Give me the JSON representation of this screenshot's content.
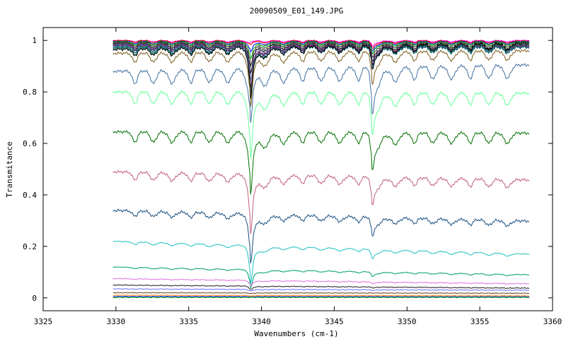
{
  "chart_data": {
    "type": "line",
    "title": "20090509_E01_149.JPG",
    "xlabel": "Wavenumbers (cm-1)",
    "ylabel": "Transmitance",
    "xlim": [
      3325,
      3360
    ],
    "ylim": [
      -0.05,
      1.05
    ],
    "x_ticks": [
      3325,
      3330,
      3335,
      3340,
      3345,
      3350,
      3355,
      3360
    ],
    "y_ticks": [
      0,
      0.2,
      0.4,
      0.6,
      0.8,
      1
    ],
    "x_tick_labels": [
      "3325",
      "3330",
      "3335",
      "3340",
      "3345",
      "3350",
      "3355",
      "3360"
    ],
    "y_tick_labels": [
      "0",
      "0.2",
      "0.4",
      "0.6",
      "0.8",
      "1"
    ],
    "grid": false,
    "legend": "none",
    "x_range_data": [
      3329.8,
      3358.4
    ],
    "series": [
      {
        "color": "#ff00ff",
        "start": 1.0,
        "end": 1.0,
        "main_dip": 0.995,
        "line_dips": 0.006
      },
      {
        "color": "#ff0000",
        "start": 1.0,
        "end": 0.998,
        "main_dip": 0.99,
        "line_dips": 0.008
      },
      {
        "color": "#0000ff",
        "start": 0.997,
        "end": 0.996,
        "main_dip": 0.97,
        "line_dips": 0.01
      },
      {
        "color": "#00a000",
        "start": 0.995,
        "end": 0.994,
        "main_dip": 0.95,
        "line_dips": 0.012
      },
      {
        "color": "#404040",
        "start": 0.992,
        "end": 0.99,
        "main_dip": 0.93,
        "line_dips": 0.015
      },
      {
        "color": "#000000",
        "start": 0.988,
        "end": 0.985,
        "main_dip": 0.91,
        "line_dips": 0.018
      },
      {
        "color": "#8080c0",
        "start": 0.985,
        "end": 0.982,
        "main_dip": 0.89,
        "line_dips": 0.02
      },
      {
        "color": "#800040",
        "start": 0.982,
        "end": 0.98,
        "main_dip": 0.87,
        "line_dips": 0.02
      },
      {
        "color": "#2f4f8f",
        "start": 0.98,
        "end": 0.976,
        "main_dip": 0.86,
        "line_dips": 0.02
      },
      {
        "color": "#006060",
        "start": 0.975,
        "end": 0.973,
        "main_dip": 0.85,
        "line_dips": 0.022
      },
      {
        "color": "#1f6f5f",
        "start": 0.97,
        "end": 0.985,
        "main_dip": 0.84,
        "line_dips": 0.025
      },
      {
        "color": "#000000",
        "start": 0.965,
        "end": 0.99,
        "main_dip": 0.83,
        "line_dips": 0.025
      },
      {
        "color": "#806020",
        "start": 0.95,
        "end": 0.96,
        "main_dip": 0.81,
        "line_dips": 0.035
      },
      {
        "color": "#3f6f9f",
        "start": 0.88,
        "end": 0.905,
        "main_dip": 0.745,
        "line_dips": 0.05
      },
      {
        "color": "#66ff99",
        "start": 0.8,
        "end": 0.795,
        "main_dip": 0.63,
        "line_dips": 0.045
      },
      {
        "color": "#007000",
        "start": 0.645,
        "end": 0.64,
        "main_dip": 0.485,
        "line_dips": 0.04
      },
      {
        "color": "#c06080",
        "start": 0.49,
        "end": 0.458,
        "main_dip": 0.335,
        "line_dips": 0.03
      },
      {
        "color": "#1a5080",
        "start": 0.34,
        "end": 0.298,
        "main_dip": 0.21,
        "line_dips": 0.02
      },
      {
        "color": "#20c0c0",
        "start": 0.22,
        "end": 0.17,
        "main_dip": 0.12,
        "line_dips": 0.01
      },
      {
        "color": "#00a070",
        "start": 0.12,
        "end": 0.09,
        "main_dip": 0.072,
        "line_dips": 0.005
      },
      {
        "color": "#e070e0",
        "start": 0.075,
        "end": 0.055,
        "main_dip": 0.06,
        "line_dips": 0.002
      },
      {
        "color": "#202020",
        "start": 0.05,
        "end": 0.038,
        "main_dip": 0.04,
        "line_dips": 0.001
      },
      {
        "color": "#7070ff",
        "start": 0.035,
        "end": 0.03,
        "main_dip": 0.03,
        "line_dips": 0.001
      },
      {
        "color": "#704020",
        "start": 0.02,
        "end": 0.018,
        "main_dip": 0.018,
        "line_dips": 0.0
      },
      {
        "color": "#ff8000",
        "start": 0.01,
        "end": 0.008,
        "main_dip": 0.008,
        "line_dips": 0.0
      },
      {
        "color": "#0000ff",
        "start": 0.005,
        "end": 0.004,
        "main_dip": 0.004,
        "line_dips": 0.0
      },
      {
        "color": "#00b000",
        "start": 0.002,
        "end": 0.002,
        "main_dip": 0.002,
        "line_dips": 0.0
      }
    ]
  }
}
